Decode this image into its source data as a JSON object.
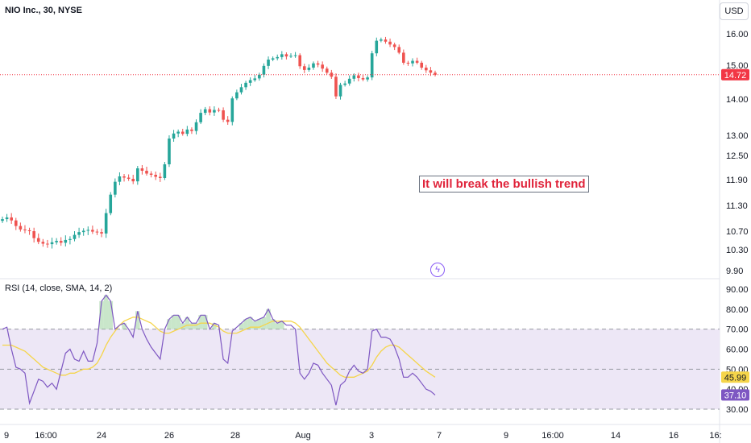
{
  "header": {
    "symbol": "NIO Inc., 30, NYSE",
    "currency": "USD"
  },
  "annotation": {
    "text": "It will break the bullish trend"
  },
  "rsi_title": "RSI (14, close, SMA, 14, 2)",
  "icons": {
    "flash": "lightning-icon"
  },
  "colors": {
    "up": "#26a69a",
    "down": "#ef5350",
    "rsi": "#7e57c2",
    "rsi_ma": "#f5d54a",
    "band": "#ede7f6",
    "last_price": "#f23645"
  },
  "chart_data": [
    {
      "type": "candlestick",
      "title": "NIO Inc., 30, NYSE",
      "y_ticks": [
        16.0,
        15.0,
        14.0,
        13.0,
        12.5,
        11.9,
        11.3,
        10.7,
        10.3,
        9.9
      ],
      "y_tick_labels": [
        "16.00",
        "15.00",
        "14.00",
        "13.00",
        "12.50",
        "11.90",
        "11.30",
        "10.70",
        "10.30",
        "9.90"
      ],
      "x_labels": [
        "9",
        "16:00",
        "24",
        "26",
        "28",
        "Aug",
        "3",
        "7",
        "9",
        "16:00",
        "14",
        "16",
        "16:"
      ],
      "last_price": 14.72,
      "last_price_label": "14.72",
      "close_series_approx": [
        10.98,
        11.02,
        10.95,
        10.82,
        10.74,
        10.72,
        10.7,
        10.55,
        10.47,
        10.43,
        10.42,
        10.46,
        10.49,
        10.45,
        10.51,
        10.53,
        10.62,
        10.68,
        10.71,
        10.73,
        10.69,
        10.68,
        10.65,
        11.12,
        11.55,
        11.85,
        11.98,
        11.95,
        11.92,
        11.86,
        12.18,
        12.12,
        12.05,
        12.02,
        11.97,
        11.94,
        12.28,
        12.92,
        13.05,
        13.1,
        13.04,
        13.16,
        13.12,
        13.36,
        13.62,
        13.72,
        13.63,
        13.7,
        13.69,
        13.43,
        13.37,
        14.02,
        14.2,
        14.35,
        14.48,
        14.56,
        14.61,
        14.72,
        14.98,
        15.18,
        15.22,
        15.26,
        15.35,
        15.28,
        15.3,
        15.32,
        14.97,
        14.86,
        14.93,
        15.06,
        15.02,
        14.9,
        14.78,
        14.66,
        14.08,
        14.42,
        14.46,
        14.6,
        14.7,
        14.62,
        14.58,
        14.64,
        15.38,
        15.78,
        15.82,
        15.75,
        15.66,
        15.58,
        15.4,
        15.08,
        15.06,
        15.14,
        15.08,
        14.93,
        14.85,
        14.78,
        14.72
      ]
    },
    {
      "type": "line",
      "title": "RSI (14, close, SMA, 14, 2)",
      "ylim": [
        28,
        92
      ],
      "y_ticks": [
        30,
        40,
        50,
        60,
        70,
        80,
        90
      ],
      "y_tick_labels": [
        "30.00",
        "40.00",
        "50.00",
        "60.00",
        "70.00",
        "80.00",
        "90.00"
      ],
      "band": [
        30,
        70
      ],
      "midline": 50,
      "series": [
        {
          "value_label": "37.10",
          "values": [
            70,
            71,
            60,
            51,
            50,
            48,
            33,
            39,
            45,
            44,
            41,
            43,
            40,
            49,
            58,
            60,
            55,
            54,
            59,
            54,
            54,
            63,
            84,
            87,
            84,
            70,
            72,
            73,
            70,
            66,
            79,
            70,
            65,
            61,
            58,
            55,
            70,
            75,
            77,
            77,
            73,
            76,
            73,
            73,
            77,
            77,
            70,
            73,
            72,
            55,
            53,
            69,
            71,
            73,
            75,
            76,
            74,
            75,
            76,
            80,
            75,
            73,
            74,
            72,
            72,
            70,
            48,
            45,
            48,
            53,
            52,
            48,
            45,
            42,
            32,
            42,
            44,
            49,
            52,
            49,
            48,
            50,
            69,
            70,
            66,
            66,
            65,
            61,
            55,
            46,
            46,
            48,
            46,
            43,
            40,
            39,
            37.1
          ]
        },
        {
          "value_label": "45.99",
          "values": [
            62,
            62,
            62,
            61,
            60,
            59,
            57,
            55,
            53,
            51,
            50,
            49,
            48,
            47,
            47,
            48,
            48,
            49,
            50,
            50,
            51,
            53,
            57,
            62,
            66,
            69,
            72,
            74,
            75,
            76,
            76,
            75,
            74,
            73,
            71,
            69,
            68,
            68,
            69,
            70,
            71,
            72,
            72,
            72,
            73,
            73,
            73,
            72,
            71,
            69,
            68,
            68,
            68,
            69,
            70,
            71,
            71,
            71,
            72,
            73,
            74,
            74,
            74,
            74,
            74,
            73,
            71,
            68,
            65,
            62,
            59,
            56,
            53,
            51,
            49,
            47,
            46,
            46,
            46,
            47,
            48,
            49,
            52,
            56,
            59,
            61,
            62,
            62,
            61,
            59,
            57,
            55,
            53,
            51,
            49,
            47.5,
            45.99
          ]
        }
      ]
    }
  ]
}
